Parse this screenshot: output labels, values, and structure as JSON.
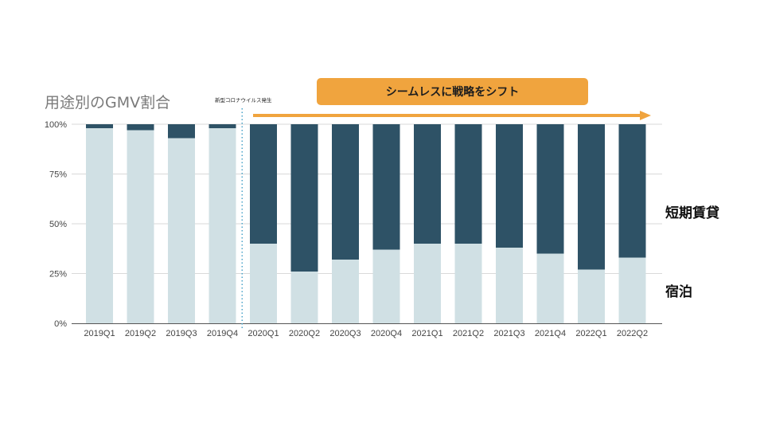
{
  "chart_data": {
    "type": "bar",
    "stacked": true,
    "title": "用途別のGMV割合",
    "categories": [
      "2019Q1",
      "2019Q2",
      "2019Q3",
      "2019Q4",
      "2020Q1",
      "2020Q2",
      "2020Q3",
      "2020Q4",
      "2021Q1",
      "2021Q2",
      "2021Q3",
      "2021Q4",
      "2022Q1",
      "2022Q2"
    ],
    "series": [
      {
        "name": "宿泊",
        "color": "#d0e0e4",
        "values": [
          98,
          97,
          93,
          98,
          40,
          26,
          32,
          37,
          40,
          40,
          38,
          35,
          27,
          33
        ]
      },
      {
        "name": "短期賃貸",
        "color": "#2e5266",
        "values": [
          2,
          3,
          7,
          2,
          60,
          74,
          68,
          63,
          60,
          60,
          62,
          65,
          73,
          67
        ]
      }
    ],
    "yticks": [
      "0%",
      "25%",
      "50%",
      "75%",
      "100%"
    ],
    "ylim": [
      0,
      100
    ],
    "annotations": {
      "event_label": "新型コロナウイルス発生",
      "banner": "シームレスに戦略をシフト"
    },
    "legend": {
      "upper": "短期賃貸",
      "lower": "宿泊"
    },
    "colors": {
      "accent": "#f0a43e",
      "grid": "#d9d9d9",
      "axis": "#555555",
      "divider": "#4aa3c8"
    }
  }
}
